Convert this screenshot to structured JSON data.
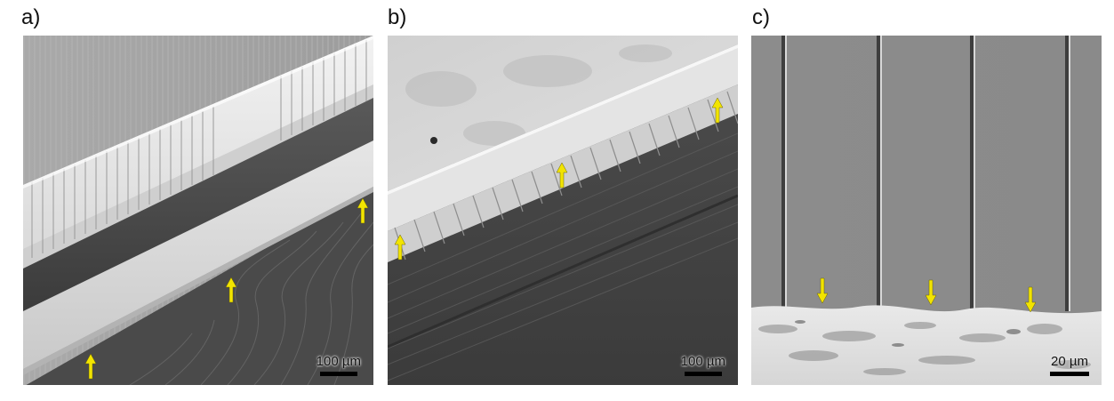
{
  "panels": [
    {
      "label": "a)",
      "scale_bar": "100 µm"
    },
    {
      "label": "b)",
      "scale_bar": "100 µm"
    },
    {
      "label": "c)",
      "scale_bar": "20 µm"
    }
  ],
  "colors": {
    "arrow": "#f2e400",
    "scale_bar_line": "#000000"
  },
  "icons": {
    "marker": "yellow-arrow-icon"
  }
}
